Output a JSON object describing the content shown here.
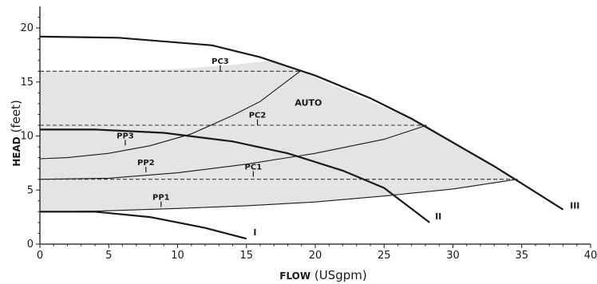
{
  "chart_data": {
    "type": "line",
    "title": "",
    "xlabel": "FLOW (USgpm)",
    "ylabel": "HEAD (feet)",
    "xlabel_parts": {
      "bold": "FLOW",
      "rest": " (USgpm)"
    },
    "ylabel_parts": {
      "bold": "HEAD",
      "rest": " (feet)"
    },
    "xlim": [
      0,
      40
    ],
    "ylim": [
      0,
      22
    ],
    "xticks": [
      0,
      5,
      10,
      15,
      20,
      25,
      30,
      35,
      40
    ],
    "yticks": [
      0,
      5,
      10,
      15,
      20
    ],
    "grid": false,
    "legend": "none",
    "auto_region": {
      "label": "AUTO",
      "color": "#e4e4e4",
      "points": [
        [
          0,
          3
        ],
        [
          4,
          3.05
        ],
        [
          10,
          3.3
        ],
        [
          15,
          3.55
        ],
        [
          20,
          3.9
        ],
        [
          25,
          4.45
        ],
        [
          30,
          5.1
        ],
        [
          34.7,
          6
        ],
        [
          28.1,
          11
        ],
        [
          18.9,
          16
        ],
        [
          17,
          17
        ],
        [
          14,
          16.6
        ],
        [
          10,
          16.2
        ],
        [
          5,
          16.05
        ],
        [
          0,
          16.05
        ]
      ]
    },
    "series": [
      {
        "name": "I",
        "style": "max",
        "label_at": [
          15.5,
          0.8
        ],
        "points": [
          [
            0,
            3
          ],
          [
            4,
            3
          ],
          [
            8,
            2.5
          ],
          [
            12,
            1.5
          ],
          [
            15,
            0.5
          ]
        ]
      },
      {
        "name": "II",
        "style": "max",
        "label_at": [
          28.7,
          2.3
        ],
        "points": [
          [
            0,
            10.6
          ],
          [
            4,
            10.6
          ],
          [
            9,
            10.3
          ],
          [
            14,
            9.5
          ],
          [
            18,
            8.4
          ],
          [
            22,
            6.8
          ],
          [
            25,
            5.2
          ],
          [
            28.3,
            2
          ]
        ]
      },
      {
        "name": "III",
        "style": "max",
        "label_at": [
          38.5,
          3.3
        ],
        "points": [
          [
            0,
            19.2
          ],
          [
            5.7,
            19.1
          ],
          [
            12.5,
            18.4
          ],
          [
            16,
            17.3
          ],
          [
            20,
            15.6
          ],
          [
            24,
            13.5
          ],
          [
            27,
            11.6
          ],
          [
            30,
            9.4
          ],
          [
            33,
            7.2
          ],
          [
            35,
            5.6
          ],
          [
            38,
            3.2
          ]
        ]
      },
      {
        "name": "PP1",
        "style": "mode",
        "label_at": [
          8.8,
          4.1
        ],
        "points": [
          [
            0,
            3
          ],
          [
            4,
            3.05
          ],
          [
            10,
            3.3
          ],
          [
            15,
            3.55
          ],
          [
            20,
            3.9
          ],
          [
            25,
            4.45
          ],
          [
            30,
            5.1
          ],
          [
            34.7,
            6
          ]
        ]
      },
      {
        "name": "PP2",
        "style": "mode",
        "label_at": [
          7.7,
          7.3
        ],
        "points": [
          [
            0,
            6
          ],
          [
            5,
            6.1
          ],
          [
            10,
            6.6
          ],
          [
            15,
            7.4
          ],
          [
            20,
            8.4
          ],
          [
            25,
            9.7
          ],
          [
            28.1,
            11
          ]
        ]
      },
      {
        "name": "PP3",
        "style": "mode",
        "label_at": [
          6.2,
          9.8
        ],
        "points": [
          [
            0,
            7.9
          ],
          [
            2,
            8
          ],
          [
            5,
            8.4
          ],
          [
            8,
            9.1
          ],
          [
            11,
            10.2
          ],
          [
            14,
            11.9
          ],
          [
            16,
            13.2
          ],
          [
            18.9,
            16
          ]
        ]
      },
      {
        "name": "PC1",
        "style": "const",
        "label_at": [
          15.5,
          6.9
        ],
        "points": [
          [
            0,
            6
          ],
          [
            34.7,
            6
          ]
        ]
      },
      {
        "name": "PC2",
        "style": "const",
        "label_at": [
          15.8,
          11.7
        ],
        "points": [
          [
            0,
            11
          ],
          [
            28.1,
            11
          ]
        ]
      },
      {
        "name": "PC3",
        "style": "const",
        "label_at": [
          13.1,
          16.7
        ],
        "points": [
          [
            0,
            16
          ],
          [
            18.9,
            16
          ]
        ]
      }
    ],
    "colors": {
      "lines": "#1a1a1a",
      "auto_fill": "#e4e4e4"
    }
  }
}
